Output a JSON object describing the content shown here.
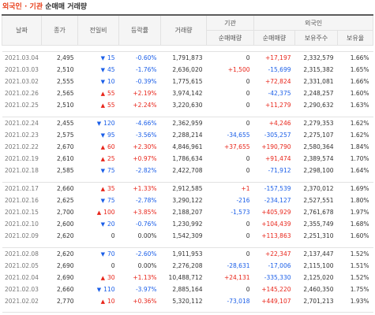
{
  "title": {
    "foreign": "외국인",
    "sep": "·",
    "inst": "기관",
    "rest": "순매매 거래량"
  },
  "headers": {
    "date": "날짜",
    "close": "종가",
    "change": "전일비",
    "rate": "등락률",
    "volume": "거래량",
    "inst_group": "기관",
    "inst_net": "순매매량",
    "foreign_group": "외국인",
    "foreign_net": "순매매량",
    "foreign_hold": "보유주수",
    "foreign_ratio": "보유율"
  },
  "groups": [
    {
      "rows": [
        {
          "date": "2021.03.04",
          "close": "2,495",
          "dir": "down",
          "change": "15",
          "rate": "-0.60%",
          "volume": "1,791,873",
          "inst": "0",
          "foreign": "+17,197",
          "hold": "2,332,579",
          "ratio": "1.66%"
        },
        {
          "date": "2021.03.03",
          "close": "2,510",
          "dir": "down",
          "change": "45",
          "rate": "-1.76%",
          "volume": "2,636,020",
          "inst": "+1,500",
          "foreign": "-15,699",
          "hold": "2,315,382",
          "ratio": "1.65%"
        },
        {
          "date": "2021.03.02",
          "close": "2,555",
          "dir": "down",
          "change": "10",
          "rate": "-0.39%",
          "volume": "1,775,615",
          "inst": "0",
          "foreign": "+72,824",
          "hold": "2,331,081",
          "ratio": "1.66%"
        },
        {
          "date": "2021.02.26",
          "close": "2,565",
          "dir": "up",
          "change": "55",
          "rate": "+2.19%",
          "volume": "3,974,142",
          "inst": "0",
          "foreign": "-42,375",
          "hold": "2,248,257",
          "ratio": "1.60%"
        },
        {
          "date": "2021.02.25",
          "close": "2,510",
          "dir": "up",
          "change": "55",
          "rate": "+2.24%",
          "volume": "3,220,630",
          "inst": "0",
          "foreign": "+11,279",
          "hold": "2,290,632",
          "ratio": "1.63%"
        }
      ]
    },
    {
      "rows": [
        {
          "date": "2021.02.24",
          "close": "2,455",
          "dir": "down",
          "change": "120",
          "rate": "-4.66%",
          "volume": "2,362,959",
          "inst": "0",
          "foreign": "+4,246",
          "hold": "2,279,353",
          "ratio": "1.62%"
        },
        {
          "date": "2021.02.23",
          "close": "2,575",
          "dir": "down",
          "change": "95",
          "rate": "-3.56%",
          "volume": "2,288,214",
          "inst": "-34,655",
          "foreign": "-305,257",
          "hold": "2,275,107",
          "ratio": "1.62%"
        },
        {
          "date": "2021.02.22",
          "close": "2,670",
          "dir": "up",
          "change": "60",
          "rate": "+2.30%",
          "volume": "4,846,961",
          "inst": "+37,655",
          "foreign": "+190,790",
          "hold": "2,580,364",
          "ratio": "1.84%"
        },
        {
          "date": "2021.02.19",
          "close": "2,610",
          "dir": "up",
          "change": "25",
          "rate": "+0.97%",
          "volume": "1,786,634",
          "inst": "0",
          "foreign": "+91,474",
          "hold": "2,389,574",
          "ratio": "1.70%"
        },
        {
          "date": "2021.02.18",
          "close": "2,585",
          "dir": "down",
          "change": "75",
          "rate": "-2.82%",
          "volume": "2,422,708",
          "inst": "0",
          "foreign": "-71,912",
          "hold": "2,298,100",
          "ratio": "1.64%"
        }
      ]
    },
    {
      "rows": [
        {
          "date": "2021.02.17",
          "close": "2,660",
          "dir": "up",
          "change": "35",
          "rate": "+1.33%",
          "volume": "2,912,585",
          "inst": "+1",
          "foreign": "-157,539",
          "hold": "2,370,012",
          "ratio": "1.69%"
        },
        {
          "date": "2021.02.16",
          "close": "2,625",
          "dir": "down",
          "change": "75",
          "rate": "-2.78%",
          "volume": "3,290,122",
          "inst": "-216",
          "foreign": "-234,127",
          "hold": "2,527,551",
          "ratio": "1.80%"
        },
        {
          "date": "2021.02.15",
          "close": "2,700",
          "dir": "up",
          "change": "100",
          "rate": "+3.85%",
          "volume": "2,188,207",
          "inst": "-1,573",
          "foreign": "+405,929",
          "hold": "2,761,678",
          "ratio": "1.97%"
        },
        {
          "date": "2021.02.10",
          "close": "2,600",
          "dir": "down",
          "change": "20",
          "rate": "-0.76%",
          "volume": "1,230,992",
          "inst": "0",
          "foreign": "+104,439",
          "hold": "2,355,749",
          "ratio": "1.68%"
        },
        {
          "date": "2021.02.09",
          "close": "2,620",
          "dir": "none",
          "change": "0",
          "rate": "0.00%",
          "volume": "1,542,309",
          "inst": "0",
          "foreign": "+113,863",
          "hold": "2,251,310",
          "ratio": "1.60%"
        }
      ]
    },
    {
      "rows": [
        {
          "date": "2021.02.08",
          "close": "2,620",
          "dir": "down",
          "change": "70",
          "rate": "-2.60%",
          "volume": "1,911,953",
          "inst": "0",
          "foreign": "+22,347",
          "hold": "2,137,447",
          "ratio": "1.52%"
        },
        {
          "date": "2021.02.05",
          "close": "2,690",
          "dir": "none",
          "change": "0",
          "rate": "0.00%",
          "volume": "2,276,208",
          "inst": "-28,631",
          "foreign": "-17,006",
          "hold": "2,115,100",
          "ratio": "1.51%"
        },
        {
          "date": "2021.02.04",
          "close": "2,690",
          "dir": "up",
          "change": "30",
          "rate": "+1.13%",
          "volume": "10,488,712",
          "inst": "+24,131",
          "foreign": "-335,330",
          "hold": "2,125,020",
          "ratio": "1.52%"
        },
        {
          "date": "2021.02.03",
          "close": "2,660",
          "dir": "down",
          "change": "110",
          "rate": "-3.97%",
          "volume": "2,885,164",
          "inst": "0",
          "foreign": "+145,220",
          "hold": "2,460,350",
          "ratio": "1.75%"
        },
        {
          "date": "2021.02.02",
          "close": "2,770",
          "dir": "up",
          "change": "10",
          "rate": "+0.36%",
          "volume": "5,320,112",
          "inst": "-73,018",
          "foreign": "+449,107",
          "hold": "2,701,213",
          "ratio": "1.93%"
        }
      ]
    }
  ]
}
